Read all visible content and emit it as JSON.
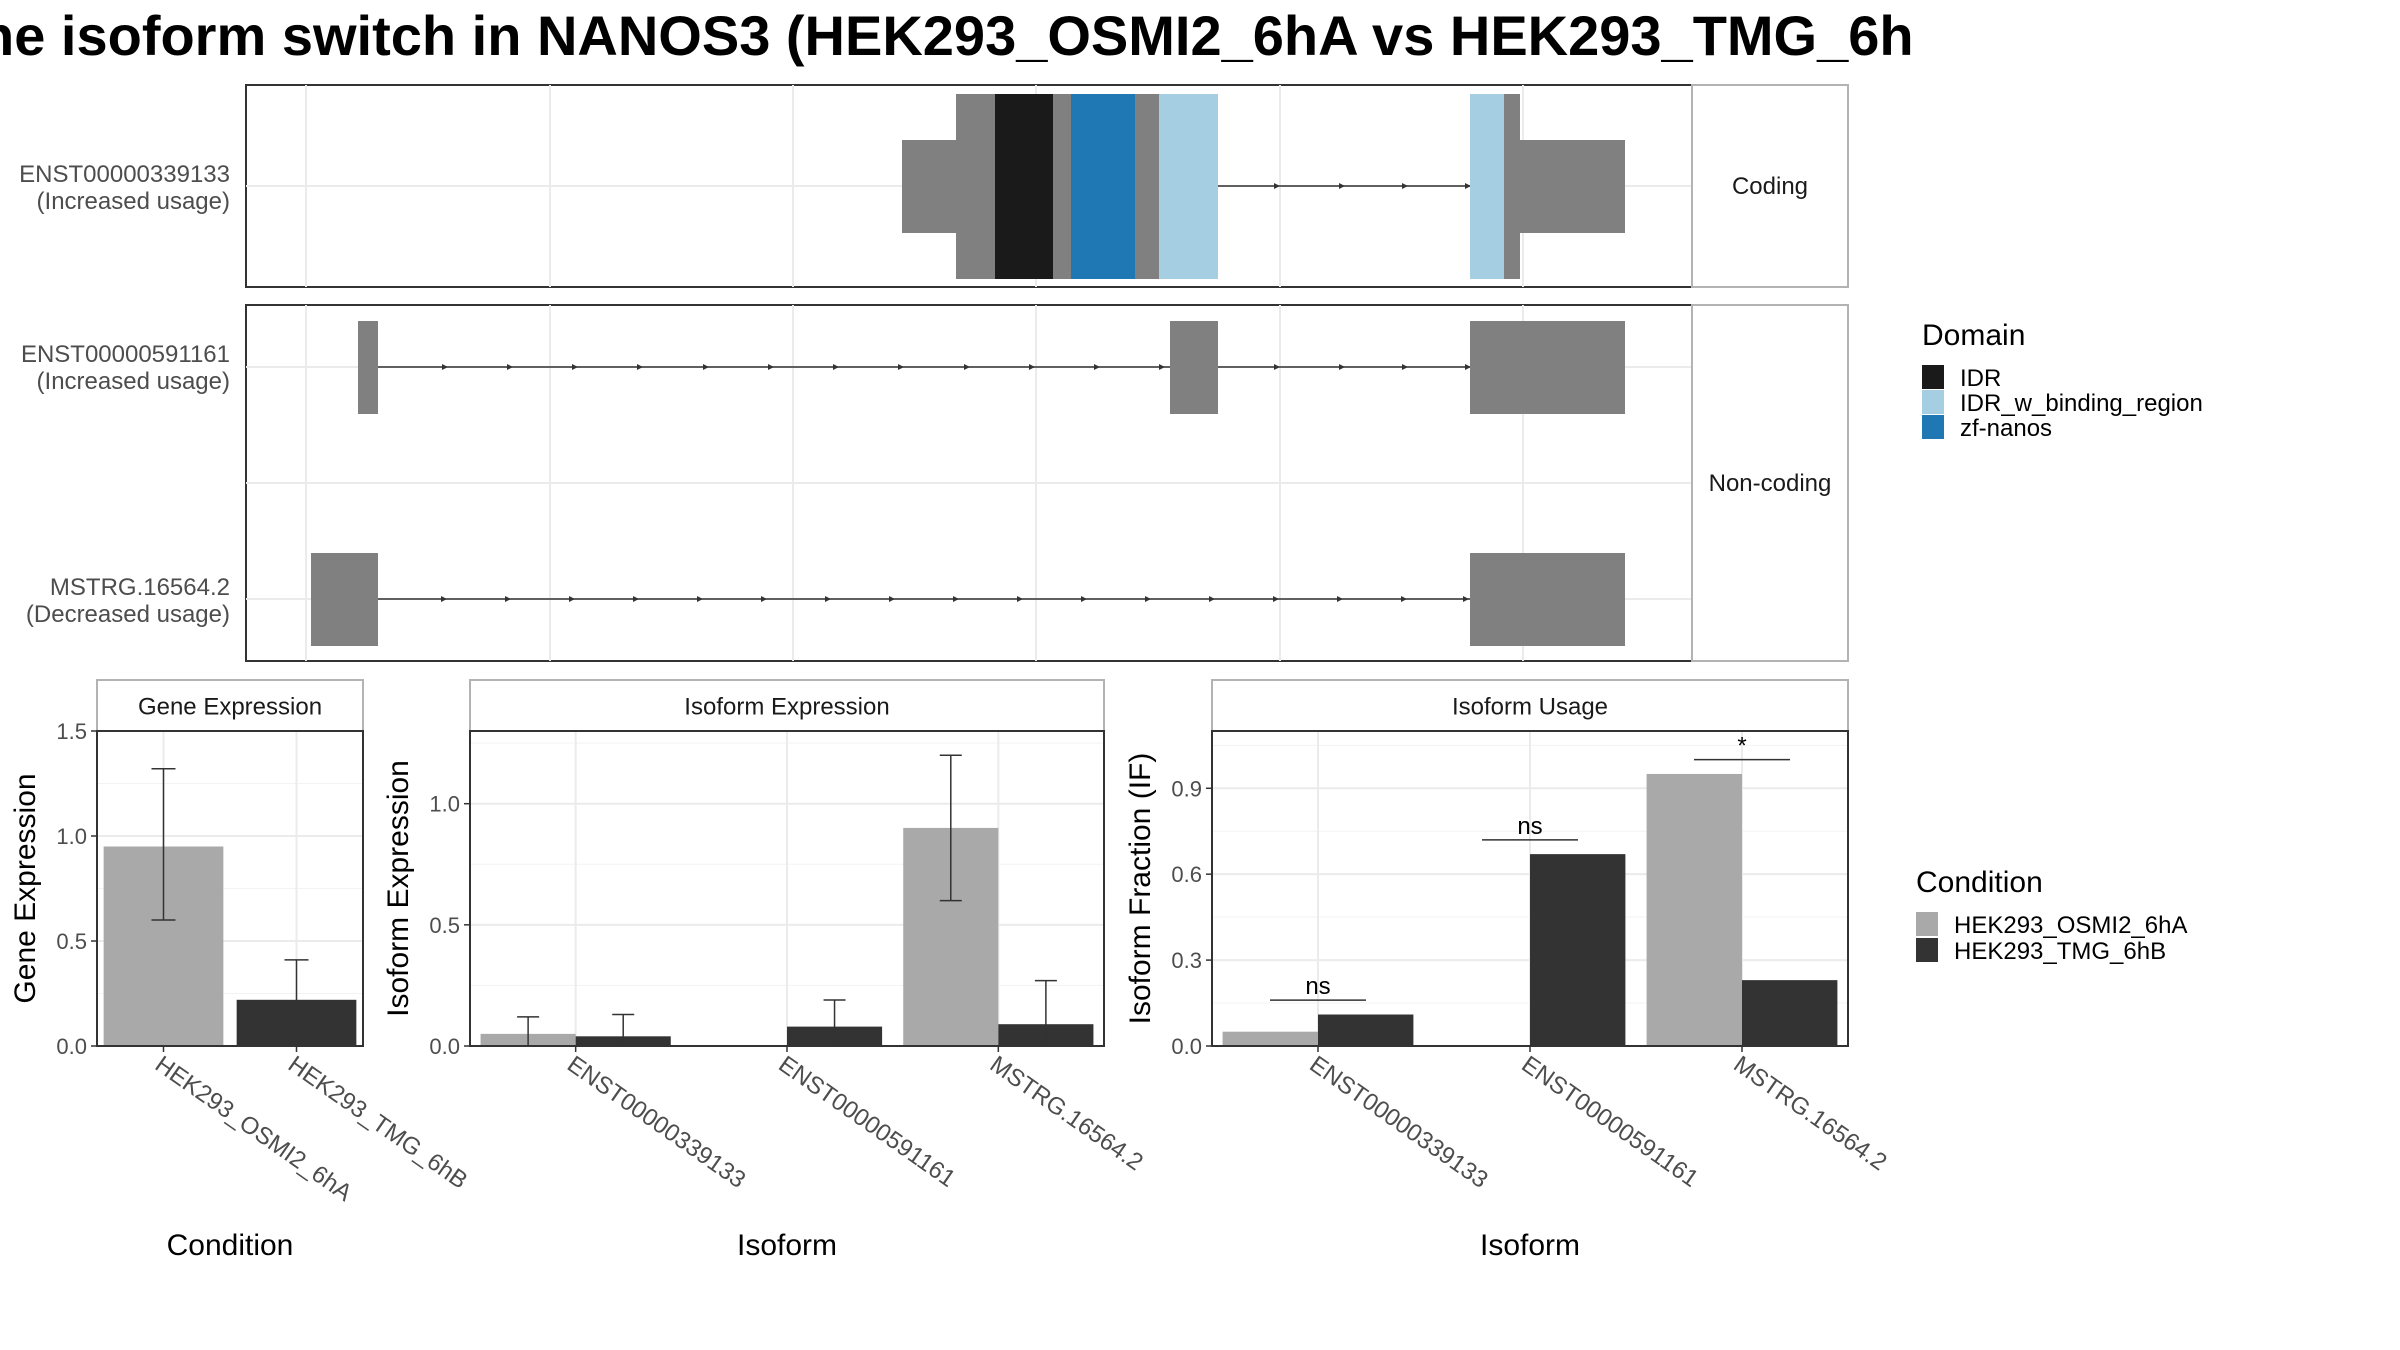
{
  "title": "ne isoform switch in NANOS3 (HEK293_OSMI2_6hA vs HEK293_TMG_6h",
  "colors": {
    "domain_IDR": "#1a1a1a",
    "domain_IDR_w_binding_region": "#a6cee3",
    "domain_zf_nanos": "#1f78b4",
    "exon": "#808080",
    "cond_A": "#a9a9a9",
    "cond_B": "#333333",
    "grid": "#ebebeb",
    "strip_border": "#b3b3b3"
  },
  "transcript_panel": {
    "coding_label": "Coding",
    "noncoding_label": "Non-coding",
    "transcripts": [
      {
        "id": "ENST00000339133",
        "usage": "(Increased usage)",
        "group": "coding"
      },
      {
        "id": "ENST00000591161",
        "usage": "(Increased usage)",
        "group": "noncoding"
      },
      {
        "id": "MSTRG.16564.2",
        "usage": "(Decreased usage)",
        "group": "noncoding"
      }
    ]
  },
  "domain_legend": {
    "title": "Domain",
    "items": [
      {
        "label": "IDR",
        "color": "#1a1a1a"
      },
      {
        "label": "IDR_w_binding_region",
        "color": "#a6cee3"
      },
      {
        "label": "zf-nanos",
        "color": "#1f78b4"
      }
    ]
  },
  "condition_legend": {
    "title": "Condition",
    "items": [
      {
        "label": "HEK293_OSMI2_6hA",
        "color": "#a9a9a9"
      },
      {
        "label": "HEK293_TMG_6hB",
        "color": "#333333"
      }
    ]
  },
  "chart_data": [
    {
      "type": "bar",
      "title": "Gene Expression",
      "xlabel": "Condition",
      "ylabel": "Gene Expression",
      "categories": [
        "HEK293_OSMI2_6hA",
        "HEK293_TMG_6hB"
      ],
      "values": [
        0.95,
        0.22
      ],
      "error_low": [
        0.6,
        0.04
      ],
      "error_high": [
        1.32,
        0.41
      ],
      "ylim": [
        0,
        1.5
      ],
      "yticks": [
        "0.0",
        "0.5",
        "1.0",
        "1.5"
      ],
      "grid": true
    },
    {
      "type": "bar",
      "title": "Isoform Expression",
      "xlabel": "Isoform",
      "ylabel": "Isoform Expression",
      "categories": [
        "ENST00000339133",
        "ENST00000591161",
        "MSTRG.16564.2"
      ],
      "series": [
        {
          "name": "HEK293_OSMI2_6hA",
          "values": [
            0.05,
            0.0,
            0.9
          ],
          "error_low": [
            0.0,
            0.0,
            0.6
          ],
          "error_high": [
            0.12,
            0.0,
            1.2
          ]
        },
        {
          "name": "HEK293_TMG_6hB",
          "values": [
            0.04,
            0.08,
            0.09
          ],
          "error_low": [
            0.0,
            0.0,
            0.0
          ],
          "error_high": [
            0.13,
            0.19,
            0.27
          ]
        }
      ],
      "ylim": [
        0,
        1.3
      ],
      "yticks": [
        "0.0",
        "0.5",
        "1.0"
      ],
      "grid": true
    },
    {
      "type": "bar",
      "title": "Isoform Usage",
      "xlabel": "Isoform",
      "ylabel": "Isoform Fraction (IF)",
      "categories": [
        "ENST00000339133",
        "ENST00000591161",
        "MSTRG.16564.2"
      ],
      "series": [
        {
          "name": "HEK293_OSMI2_6hA",
          "values": [
            0.05,
            0.0,
            0.95
          ]
        },
        {
          "name": "HEK293_TMG_6hB",
          "values": [
            0.11,
            0.67,
            0.23
          ]
        }
      ],
      "significance": [
        "ns",
        "ns",
        "*"
      ],
      "ylim": [
        0,
        1.1
      ],
      "yticks": [
        "0.0",
        "0.3",
        "0.6",
        "0.9"
      ],
      "grid": true
    }
  ]
}
